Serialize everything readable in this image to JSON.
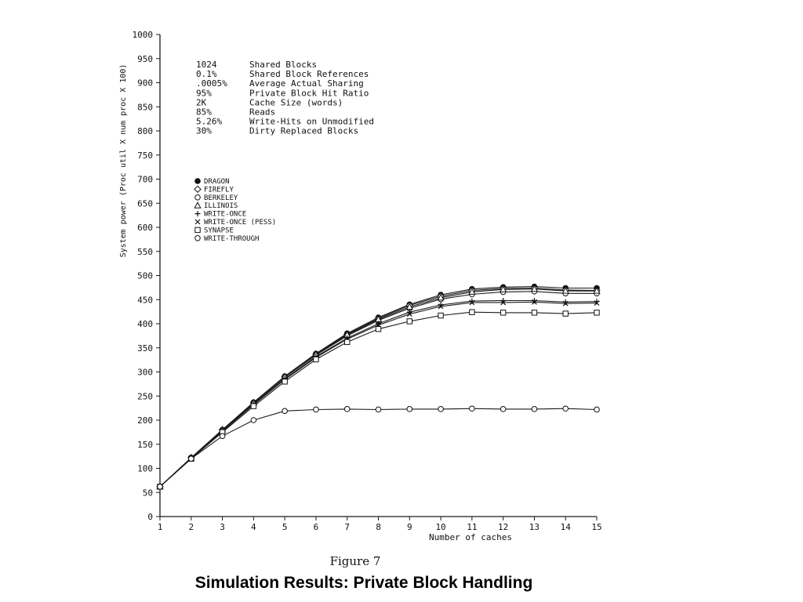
{
  "figure_label": "Figure 7",
  "caption": "Simulation Results: Private Block Handling",
  "parameters": [
    {
      "value": "1024",
      "label": "Shared Blocks"
    },
    {
      "value": "0.1%",
      "label": "Shared Block References"
    },
    {
      "value": ".0005%",
      "label": "Average Actual Sharing"
    },
    {
      "value": "95%",
      "label": "Private Block Hit Ratio"
    },
    {
      "value": "2K",
      "label": "Cache Size (words)"
    },
    {
      "value": "85%",
      "label": "Reads"
    },
    {
      "value": "5.26%",
      "label": "Write-Hits on Unmodified"
    },
    {
      "value": "30%",
      "label": "Dirty Replaced Blocks"
    }
  ],
  "chart_data": {
    "type": "line",
    "xlabel": "Number of caches",
    "ylabel": "System power (Proc util X num proc X 100)",
    "xlim": [
      1,
      15
    ],
    "ylim": [
      0,
      1000
    ],
    "x_ticks": [
      1,
      2,
      3,
      4,
      5,
      6,
      7,
      8,
      9,
      10,
      11,
      12,
      13,
      14,
      15
    ],
    "y_ticks": [
      0,
      50,
      100,
      150,
      200,
      250,
      300,
      350,
      400,
      450,
      500,
      550,
      600,
      650,
      700,
      750,
      800,
      850,
      900,
      950,
      1000
    ],
    "legend_position": "left-middle",
    "grid": false,
    "x": [
      1,
      2,
      3,
      4,
      5,
      6,
      7,
      8,
      9,
      10,
      11,
      12,
      13,
      14,
      15
    ],
    "series": [
      {
        "name": "DRAGON",
        "marker": "filled-circle",
        "values": [
          62,
          122,
          180,
          237,
          291,
          338,
          380,
          413,
          440,
          460,
          472,
          476,
          477,
          474,
          474
        ]
      },
      {
        "name": "FIREFLY",
        "marker": "diamond",
        "values": [
          62,
          122,
          180,
          236,
          290,
          337,
          378,
          411,
          438,
          457,
          469,
          473,
          474,
          470,
          469
        ]
      },
      {
        "name": "BERKELEY",
        "marker": "circle",
        "values": [
          62,
          122,
          179,
          235,
          289,
          335,
          375,
          407,
          432,
          451,
          461,
          466,
          467,
          463,
          463
        ]
      },
      {
        "name": "ILLINOIS",
        "marker": "triangle",
        "values": [
          62,
          122,
          180,
          236,
          290,
          336,
          377,
          409,
          435,
          454,
          466,
          471,
          472,
          468,
          468
        ]
      },
      {
        "name": "WRITE-ONCE",
        "marker": "plus",
        "values": [
          62,
          121,
          178,
          233,
          286,
          332,
          370,
          400,
          424,
          439,
          447,
          448,
          448,
          445,
          446
        ]
      },
      {
        "name": "WRITE-ONCE (PESS)",
        "marker": "x",
        "values": [
          62,
          121,
          177,
          232,
          284,
          330,
          368,
          397,
          420,
          436,
          444,
          444,
          445,
          442,
          443
        ]
      },
      {
        "name": "SYNAPSE",
        "marker": "square",
        "values": [
          62,
          120,
          175,
          229,
          280,
          326,
          362,
          389,
          405,
          417,
          424,
          423,
          423,
          421,
          423
        ]
      },
      {
        "name": "WRITE-THROUGH",
        "marker": "circle",
        "values": [
          62,
          120,
          167,
          200,
          219,
          222,
          223,
          222,
          223,
          223,
          224,
          223,
          223,
          224,
          222
        ]
      }
    ]
  }
}
